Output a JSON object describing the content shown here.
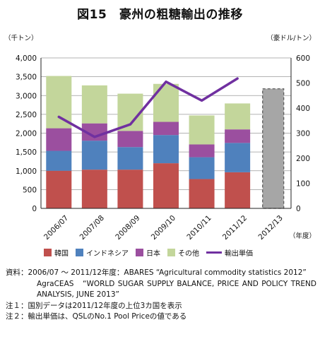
{
  "title": "図15　豪州の粗糖輸出の推移",
  "chart_data": {
    "type": "bar",
    "stacked": true,
    "left_unit": "（千トン）",
    "right_unit": "（豪ドル/トン）",
    "x_unit": "（年度）",
    "categories": [
      "2006/07",
      "2007/08",
      "2008/09",
      "2009/10",
      "2010/11",
      "2011/12",
      "2012/13"
    ],
    "left_ylim": [
      0,
      4000
    ],
    "left_ticks": [
      "0",
      "500",
      "1,000",
      "1,500",
      "2,000",
      "2,500",
      "3,000",
      "3,500",
      "4,000"
    ],
    "right_ylim": [
      0,
      600
    ],
    "right_ticks": [
      "0",
      "100",
      "200",
      "300",
      "400",
      "500",
      "600"
    ],
    "grid": true,
    "series": [
      {
        "name": "韓国",
        "color": "#c0504d",
        "values": [
          1000,
          1030,
          1030,
          1200,
          780,
          960,
          null
        ]
      },
      {
        "name": "インドネシア",
        "color": "#4f81bd",
        "values": [
          530,
          770,
          600,
          750,
          580,
          780,
          null
        ]
      },
      {
        "name": "日本",
        "color": "#9b4f9f",
        "values": [
          600,
          460,
          430,
          350,
          340,
          360,
          null
        ]
      },
      {
        "name": "その他",
        "color": "#c3d69b",
        "values": [
          1390,
          1010,
          990,
          1010,
          770,
          690,
          null
        ]
      }
    ],
    "total_2012_13": 3180,
    "total_2012_13_color": "#a6a6a6",
    "line_series": {
      "name": "輸出単価",
      "axis": "right",
      "color": "#7030a0",
      "values": [
        365,
        285,
        335,
        505,
        430,
        518,
        null
      ]
    }
  },
  "legend": [
    {
      "name": "韓国",
      "color": "#c0504d",
      "kind": "box"
    },
    {
      "name": "インドネシア",
      "color": "#4f81bd",
      "kind": "box"
    },
    {
      "name": "日本",
      "color": "#9b4f9f",
      "kind": "box"
    },
    {
      "name": "その他",
      "color": "#c3d69b",
      "kind": "box"
    },
    {
      "name": "輸出単価",
      "color": "#7030a0",
      "kind": "line"
    }
  ],
  "notes": {
    "source_label": "資料：",
    "source_line1": "2006/07 ～ 2011/12年度：ABARES “Agricultural commodity statistics 2012”",
    "source_line2": "AgraCEAS　“WORLD SUGAR SUPPLY BALANCE, PRICE AND POLICY TREND ANALYSIS, JUNE 2013”",
    "note1_label": "注１：",
    "note1": "国別データは2011/12年度の上位3カ国を表示",
    "note2_label": "注２：",
    "note2": "輸出単価は、QSLのNo.1 Pool Priceの値である"
  }
}
